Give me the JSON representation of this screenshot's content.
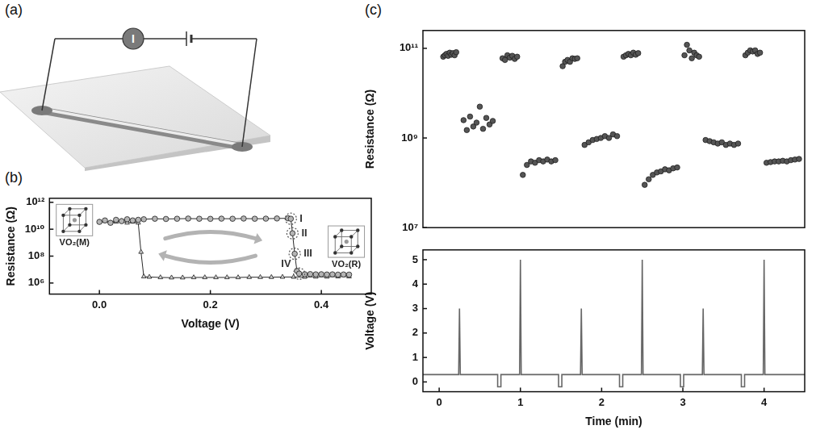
{
  "diagram": {
    "panel": "(a)",
    "meter": "I"
  },
  "chart_data": [
    {
      "panel": "(b)",
      "type": "scatter",
      "x_label": "Voltage (V)",
      "y_label": "Resistance (Ω)",
      "log": "y",
      "grid": false,
      "xlim": [
        -0.09,
        0.49
      ],
      "xticks": [
        {
          "value": 0,
          "label": "0.0"
        },
        0.2,
        0.4
      ],
      "ylim": [
        150000,
        2000000000000
      ],
      "yticks": [
        {
          "value": 1000000,
          "label": "10⁶"
        },
        {
          "value": 100000000,
          "label": "10⁸"
        },
        {
          "value": 10000000000,
          "label": "10¹⁰"
        },
        {
          "value": 1000000000000,
          "label": "10¹²"
        }
      ],
      "series": [
        {
          "marker": "circle",
          "line_style": "solid",
          "color": "#b5b5b5",
          "x": [
            0.0,
            0.01,
            0.02,
            0.03,
            0.04,
            0.05,
            0.06,
            0.07,
            0.08,
            0.1,
            0.12,
            0.14,
            0.16,
            0.18,
            0.2,
            0.22,
            0.24,
            0.26,
            0.28,
            0.3,
            0.32,
            0.34,
            0.345,
            0.348,
            0.352,
            0.356,
            0.36,
            0.37,
            0.38,
            0.39,
            0.4,
            0.41,
            0.42,
            0.43,
            0.44,
            0.45
          ],
          "values": [
            35000000000.0,
            45000000000.0,
            30000000000.0,
            50000000000.0,
            40000000000.0,
            55000000000.0,
            45000000000.0,
            50000000000.0,
            55000000000.0,
            60000000000.0,
            58000000000.0,
            60000000000.0,
            62000000000.0,
            60000000000.0,
            59000000000.0,
            61000000000.0,
            60000000000.0,
            62000000000.0,
            60000000000.0,
            61000000000.0,
            63000000000.0,
            65000000000.0,
            60000000000.0,
            5000000000.0,
            150000000.0,
            8000000.0,
            5000000.0,
            4500000.0,
            4600000.0,
            4400000.0,
            4500000.0,
            4300000.0,
            4400000.0,
            4200000.0,
            4300000.0,
            4200000.0
          ]
        },
        {
          "marker": "triangle",
          "line_style": "solid",
          "color": "#cfcfcf",
          "x": [
            0.45,
            0.43,
            0.41,
            0.39,
            0.37,
            0.35,
            0.33,
            0.31,
            0.29,
            0.27,
            0.25,
            0.23,
            0.21,
            0.19,
            0.17,
            0.15,
            0.13,
            0.11,
            0.09,
            0.08,
            0.075,
            0.07,
            0.06,
            0.05,
            0.04,
            0.03,
            0.02,
            0.01,
            0.0
          ],
          "values": [
            3000000.0,
            3000000.0,
            2900000.0,
            2900000.0,
            2800000.0,
            2800000.0,
            2800000.0,
            2700000.0,
            2700000.0,
            2700000.0,
            2600000.0,
            2600000.0,
            2600000.0,
            2600000.0,
            2600000.0,
            2500000.0,
            2500000.0,
            2600000.0,
            2800000.0,
            3000000.0,
            200000000.0,
            30000000000.0,
            35000000000.0,
            30000000000.0,
            40000000000.0,
            35000000000.0,
            30000000000.0,
            40000000000.0,
            35000000000.0
          ]
        }
      ],
      "annotations": [
        {
          "text": "I",
          "x": 0.345,
          "y": 60000000000.0
        },
        {
          "text": "II",
          "x": 0.348,
          "y": 5000000000.0
        },
        {
          "text": "III",
          "x": 0.352,
          "y": 150000000.0
        },
        {
          "text": "IV",
          "x": 0.36,
          "y": 5000000.0
        }
      ],
      "insets": [
        {
          "text": "VO₂(M)",
          "x": -0.045,
          "y": 1000000000.0
        },
        {
          "text": "VO₂(R)",
          "x": 0.445,
          "y": 25000000.0
        }
      ]
    },
    {
      "panel": "(c)",
      "type": "scatter",
      "y_label": "Resistance (Ω)",
      "log": "y",
      "grid": false,
      "tick_labels": "y",
      "xlim": [
        -0.2,
        4.5
      ],
      "ylim": [
        10000000,
        250000000000
      ],
      "yticks": [
        {
          "value": 10000000,
          "label": "10⁷"
        },
        {
          "value": 1000000000,
          "label": "10⁹"
        },
        {
          "value": 100000000000,
          "label": "10¹¹"
        }
      ],
      "series": [
        {
          "marker": "circle",
          "line_style": "none",
          "color": "#555555",
          "x": [
            0.05,
            0.07,
            0.09,
            0.11,
            0.13,
            0.15,
            0.17,
            0.19,
            0.21,
            0.3,
            0.34,
            0.38,
            0.42,
            0.46,
            0.5,
            0.54,
            0.58,
            0.62,
            0.66,
            0.78,
            0.81,
            0.84,
            0.87,
            0.9,
            0.93,
            0.96,
            1.03,
            1.08,
            1.13,
            1.18,
            1.23,
            1.28,
            1.33,
            1.38,
            1.43,
            1.52,
            1.55,
            1.58,
            1.61,
            1.64,
            1.67,
            1.7,
            1.79,
            1.84,
            1.89,
            1.94,
            1.99,
            2.04,
            2.09,
            2.14,
            2.19,
            2.27,
            2.3,
            2.33,
            2.36,
            2.39,
            2.42,
            2.45,
            2.53,
            2.58,
            2.63,
            2.68,
            2.73,
            2.78,
            2.83,
            2.88,
            2.93,
            3.02,
            3.05,
            3.08,
            3.11,
            3.14,
            3.17,
            3.2,
            3.28,
            3.33,
            3.38,
            3.43,
            3.48,
            3.53,
            3.58,
            3.63,
            3.68,
            3.77,
            3.8,
            3.83,
            3.86,
            3.89,
            3.92,
            3.95,
            4.03,
            4.08,
            4.13,
            4.18,
            4.23,
            4.28,
            4.33,
            4.38,
            4.43
          ],
          "values": [
            65000000000.0,
            70000000000.0,
            75000000000.0,
            68000000000.0,
            80000000000.0,
            72000000000.0,
            78000000000.0,
            70000000000.0,
            82000000000.0,
            2500000000.0,
            1500000000.0,
            3000000000.0,
            1800000000.0,
            2200000000.0,
            5000000000.0,
            1600000000.0,
            2800000000.0,
            2000000000.0,
            2400000000.0,
            60000000000.0,
            55000000000.0,
            70000000000.0,
            62000000000.0,
            68000000000.0,
            58000000000.0,
            65000000000.0,
            150000000.0,
            250000000.0,
            300000000.0,
            280000000.0,
            320000000.0,
            300000000.0,
            330000000.0,
            300000000.0,
            320000000.0,
            40000000000.0,
            50000000000.0,
            55000000000.0,
            50000000000.0,
            60000000000.0,
            58000000000.0,
            60000000000.0,
            700000000.0,
            800000000.0,
            900000000.0,
            950000000.0,
            1000000000.0,
            1100000000.0,
            1000000000.0,
            1200000000.0,
            1100000000.0,
            65000000000.0,
            70000000000.0,
            75000000000.0,
            70000000000.0,
            80000000000.0,
            72000000000.0,
            78000000000.0,
            90000000.0,
            120000000.0,
            150000000.0,
            170000000.0,
            180000000.0,
            200000000.0,
            190000000.0,
            210000000.0,
            220000000.0,
            70000000000.0,
            120000000000.0,
            90000000000.0,
            60000000000.0,
            80000000000.0,
            70000000000.0,
            65000000000.0,
            900000000.0,
            850000000.0,
            800000000.0,
            750000000.0,
            800000000.0,
            700000000.0,
            750000000.0,
            700000000.0,
            750000000.0,
            70000000000.0,
            80000000000.0,
            90000000000.0,
            85000000000.0,
            90000000000.0,
            75000000000.0,
            80000000000.0,
            280000000.0,
            290000000.0,
            300000000.0,
            300000000.0,
            310000000.0,
            300000000.0,
            320000000.0,
            330000000.0,
            340000000.0
          ]
        }
      ]
    },
    {
      "type": "line",
      "x_label": "Time (min)",
      "y_label": "Voltage (V)",
      "grid": false,
      "xlim": [
        -0.2,
        4.5
      ],
      "xticks": [
        0,
        1,
        2,
        3,
        4
      ],
      "ylim": [
        -0.4,
        5.4
      ],
      "yticks": [
        0,
        1,
        2,
        3,
        4,
        5
      ],
      "series": [
        {
          "marker": "none",
          "line_style": "solid",
          "color": "#666666",
          "x": [
            -0.2,
            0.24,
            0.25,
            0.26,
            0.72,
            0.72,
            0.76,
            0.76,
            0.99,
            1.0,
            1.01,
            1.47,
            1.47,
            1.51,
            1.51,
            1.74,
            1.75,
            1.76,
            2.22,
            2.22,
            2.26,
            2.26,
            2.49,
            2.5,
            2.51,
            2.97,
            2.97,
            3.01,
            3.01,
            3.24,
            3.25,
            3.26,
            3.72,
            3.72,
            3.76,
            3.76,
            3.99,
            4.0,
            4.01,
            4.5
          ],
          "values": [
            0.3,
            0.3,
            3,
            0.3,
            0.3,
            -0.2,
            -0.2,
            0.3,
            0.3,
            5,
            0.3,
            0.3,
            -0.2,
            -0.2,
            0.3,
            0.3,
            3,
            0.3,
            0.3,
            -0.2,
            -0.2,
            0.3,
            0.3,
            5,
            0.3,
            0.3,
            -0.2,
            -0.2,
            0.3,
            0.3,
            3,
            0.3,
            0.3,
            -0.2,
            -0.2,
            0.3,
            0.3,
            5,
            0.3,
            0.3
          ]
        }
      ]
    }
  ]
}
